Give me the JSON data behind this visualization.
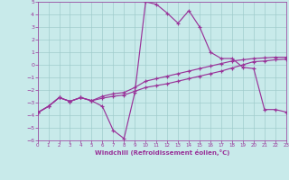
{
  "xlabel": "Windchill (Refroidissement éolien,°C)",
  "xlim": [
    0,
    23
  ],
  "ylim": [
    -6,
    5
  ],
  "xticks": [
    0,
    1,
    2,
    3,
    4,
    5,
    6,
    7,
    8,
    9,
    10,
    11,
    12,
    13,
    14,
    15,
    16,
    17,
    18,
    19,
    20,
    21,
    22,
    23
  ],
  "yticks": [
    -6,
    -5,
    -4,
    -3,
    -2,
    -1,
    0,
    1,
    2,
    3,
    4,
    5
  ],
  "bg_color": "#c8eaea",
  "line_color": "#993399",
  "grid_color": "#a0cccc",
  "line1_x": [
    0,
    1,
    2,
    3,
    4,
    5,
    6,
    7,
    8,
    9,
    10,
    11,
    12,
    13,
    14,
    15,
    16,
    17,
    18,
    19,
    20,
    21,
    22,
    23
  ],
  "line1_y": [
    -3.8,
    -3.3,
    -2.6,
    -2.9,
    -2.6,
    -2.85,
    -3.3,
    -5.2,
    -5.85,
    -2.2,
    5.0,
    4.8,
    4.1,
    3.3,
    4.3,
    3.0,
    1.0,
    0.5,
    0.5,
    -0.2,
    -0.3,
    -3.55,
    -3.55,
    -3.75
  ],
  "line2_x": [
    0,
    1,
    2,
    3,
    4,
    5,
    6,
    7,
    8,
    9,
    10,
    11,
    12,
    13,
    14,
    15,
    16,
    17,
    18,
    19,
    20,
    21,
    22,
    23
  ],
  "line2_y": [
    -3.8,
    -3.3,
    -2.6,
    -2.9,
    -2.6,
    -2.85,
    -2.5,
    -2.3,
    -2.2,
    -1.8,
    -1.3,
    -1.1,
    -0.9,
    -0.7,
    -0.5,
    -0.3,
    -0.1,
    0.1,
    0.3,
    0.4,
    0.5,
    0.55,
    0.6,
    0.6
  ],
  "line3_x": [
    0,
    1,
    2,
    3,
    4,
    5,
    6,
    7,
    8,
    9,
    10,
    11,
    12,
    13,
    14,
    15,
    16,
    17,
    18,
    19,
    20,
    21,
    22,
    23
  ],
  "line3_y": [
    -3.8,
    -3.3,
    -2.6,
    -2.9,
    -2.6,
    -2.85,
    -2.65,
    -2.5,
    -2.4,
    -2.1,
    -1.8,
    -1.65,
    -1.5,
    -1.3,
    -1.1,
    -0.9,
    -0.7,
    -0.5,
    -0.25,
    0.0,
    0.25,
    0.3,
    0.4,
    0.45
  ]
}
